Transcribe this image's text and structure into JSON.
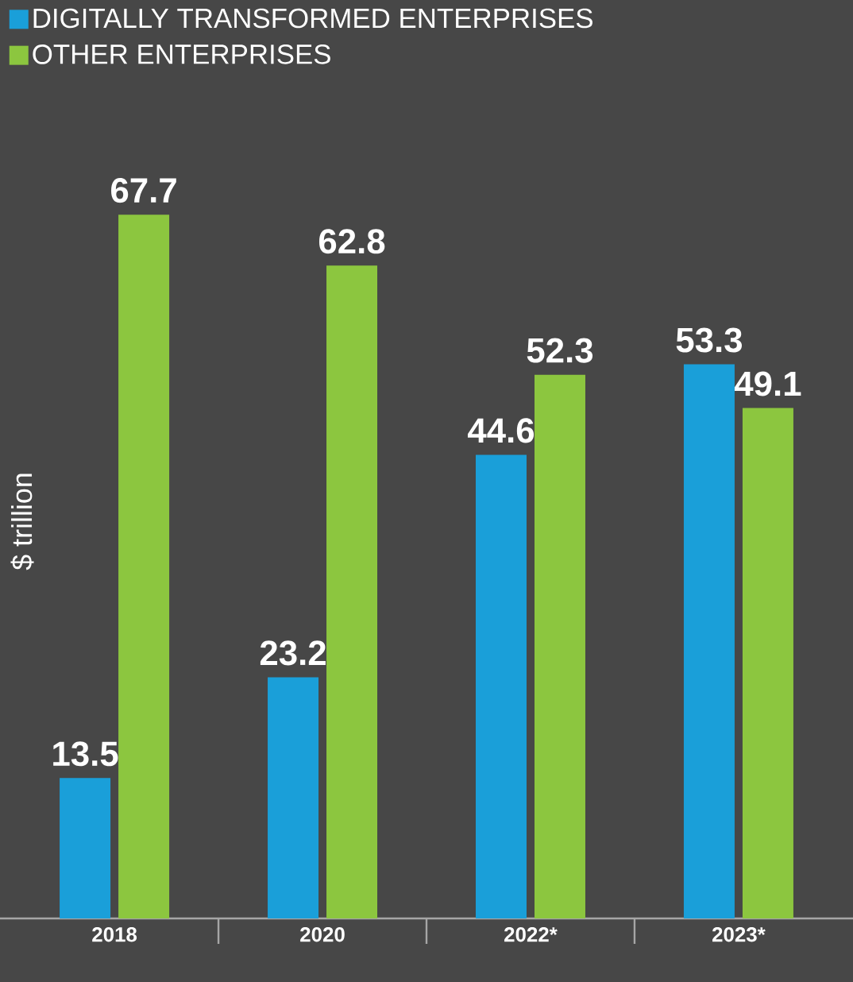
{
  "chart_data": {
    "type": "bar",
    "categories": [
      "2018",
      "2020",
      "2022*",
      "2023*"
    ],
    "series": [
      {
        "name": "DIGITALLY TRANSFORMED ENTERPRISES",
        "color": "#1a9fd9",
        "values": [
          13.5,
          23.2,
          44.6,
          53.3
        ]
      },
      {
        "name": "OTHER ENTERPRISES",
        "color": "#8cc63f",
        "values": [
          67.7,
          62.8,
          52.3,
          49.1
        ]
      }
    ],
    "ylabel": "$ trillion",
    "legend": "top left",
    "data_labels": true,
    "tick_labels": "x"
  }
}
